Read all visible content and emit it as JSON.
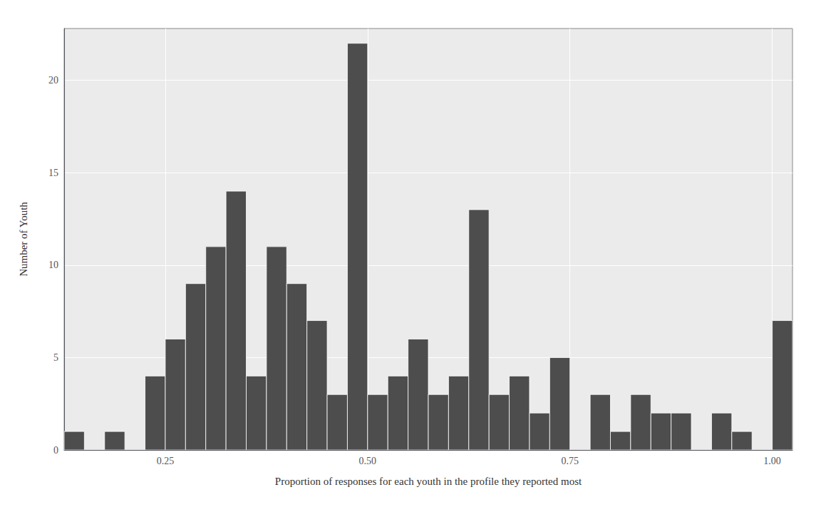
{
  "chart_data": {
    "type": "histogram",
    "xlabel": "Proportion of responses for each youth in the profile they reported most",
    "ylabel": "Number of Youth",
    "bins": [
      0.125,
      0.15,
      0.175,
      0.2,
      0.225,
      0.25,
      0.275,
      0.3,
      0.325,
      0.35,
      0.375,
      0.4,
      0.425,
      0.45,
      0.475,
      0.5,
      0.525,
      0.55,
      0.575,
      0.6,
      0.625,
      0.65,
      0.675,
      0.7,
      0.725,
      0.75,
      0.775,
      0.8,
      0.825,
      0.85,
      0.875,
      0.9,
      0.925,
      0.95,
      0.975,
      1,
      1.025
    ],
    "values": [
      1,
      0,
      1,
      0,
      4,
      6,
      9,
      11,
      14,
      4,
      11,
      9,
      7,
      3,
      22,
      3,
      4,
      6,
      3,
      4,
      13,
      3,
      4,
      2,
      5,
      0,
      3,
      1,
      3,
      2,
      2,
      0,
      2,
      1,
      0,
      7
    ],
    "color": "#4d4d4d",
    "xlim": [
      0.125,
      1.025
    ],
    "ylim": [
      0,
      22.8
    ],
    "xticks": [
      0.25,
      {
        "value": 0.5,
        "label": "0.50"
      },
      0.75,
      {
        "value": 1,
        "label": "1.00"
      }
    ],
    "yticks": [
      0,
      5,
      10,
      15,
      20
    ],
    "grid": true
  }
}
